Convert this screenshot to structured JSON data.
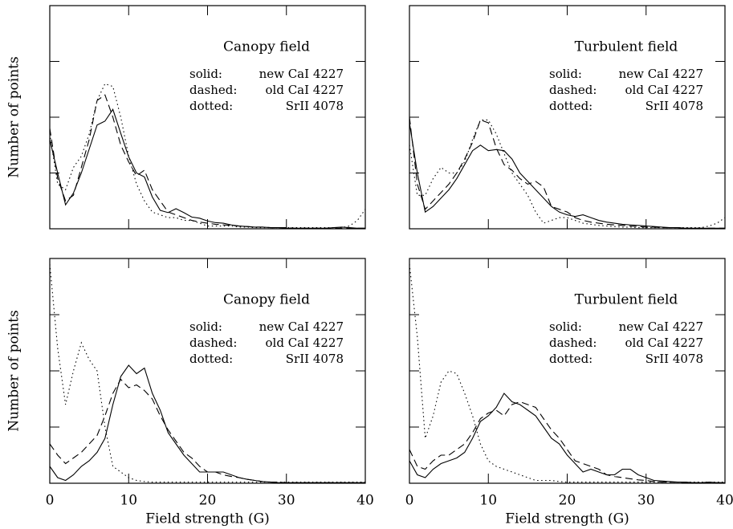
{
  "chart_data": [
    {
      "type": "line",
      "title": "Canopy field",
      "ylabel": "Number of points",
      "xlim": [
        0,
        40
      ],
      "xticks": [
        0,
        10,
        20,
        30,
        40
      ],
      "ylim": [
        0,
        4
      ],
      "yticks": [
        0,
        1,
        2,
        3,
        4
      ],
      "x": [
        0,
        1,
        2,
        3,
        4,
        5,
        6,
        7,
        8,
        9,
        10,
        11,
        12,
        13,
        14,
        15,
        16,
        17,
        18,
        19,
        20,
        21,
        22,
        23,
        24,
        25,
        26,
        27,
        28,
        29,
        30,
        31,
        32,
        33,
        34,
        35,
        36,
        37,
        38,
        39,
        40
      ],
      "series": [
        {
          "name": "new CaI 4227",
          "legend_prefix": "solid:",
          "dash": "solid",
          "color": "#000",
          "values": [
            1.6,
            1.0,
            0.43,
            0.64,
            1.0,
            1.43,
            1.86,
            1.93,
            2.14,
            1.71,
            1.29,
            1.0,
            0.93,
            0.57,
            0.33,
            0.29,
            0.36,
            0.29,
            0.21,
            0.19,
            0.14,
            0.11,
            0.1,
            0.07,
            0.05,
            0.04,
            0.03,
            0.03,
            0.02,
            0.02,
            0.01,
            0.01,
            0.01,
            0.01,
            0.01,
            0.01,
            0.02,
            0.03,
            0.02,
            0.01,
            0.01
          ]
        },
        {
          "name": "old CaI 4227",
          "legend_prefix": "dashed:",
          "dash": "dashed",
          "color": "#000",
          "values": [
            1.8,
            0.9,
            0.5,
            0.6,
            1.1,
            1.6,
            2.3,
            2.4,
            2.0,
            1.5,
            1.2,
            0.95,
            1.05,
            0.7,
            0.5,
            0.3,
            0.25,
            0.2,
            0.15,
            0.12,
            0.1,
            0.08,
            0.07,
            0.06,
            0.05,
            0.04,
            0.03,
            0.03,
            0.02,
            0.02,
            0.02,
            0.01,
            0.01,
            0.01,
            0.01,
            0.01,
            0.01,
            0.01,
            0.01,
            0.01,
            0.01
          ]
        },
        {
          "name": "SrII 4078",
          "legend_prefix": "dotted:",
          "dash": "dotted",
          "color": "#000",
          "values": [
            1.7,
            0.8,
            0.7,
            1.1,
            1.3,
            1.7,
            2.3,
            2.6,
            2.55,
            2.0,
            1.3,
            0.8,
            0.5,
            0.3,
            0.25,
            0.2,
            0.2,
            0.15,
            0.15,
            0.1,
            0.05,
            0.05,
            0.05,
            0.05,
            0.03,
            0.03,
            0.02,
            0.02,
            0.02,
            0.02,
            0.02,
            0.02,
            0.02,
            0.02,
            0.02,
            0.02,
            0.02,
            0.02,
            0.05,
            0.15,
            0.35
          ]
        }
      ]
    },
    {
      "type": "line",
      "title": "Turbulent field",
      "xlim": [
        0,
        40
      ],
      "xticks": [
        0,
        10,
        20,
        30,
        40
      ],
      "ylim": [
        0,
        4
      ],
      "yticks": [
        0,
        1,
        2,
        3,
        4
      ],
      "x": [
        0,
        1,
        2,
        3,
        4,
        5,
        6,
        7,
        8,
        9,
        10,
        11,
        12,
        13,
        14,
        15,
        16,
        17,
        18,
        19,
        20,
        21,
        22,
        23,
        24,
        25,
        26,
        27,
        28,
        29,
        30,
        31,
        32,
        33,
        34,
        35,
        36,
        37,
        38,
        39,
        40
      ],
      "series": [
        {
          "name": "new CaI 4227",
          "legend_prefix": "solid:",
          "dash": "solid",
          "color": "#000",
          "values": [
            1.9,
            1.0,
            0.3,
            0.4,
            0.55,
            0.7,
            0.9,
            1.15,
            1.4,
            1.5,
            1.4,
            1.42,
            1.4,
            1.25,
            1.0,
            0.85,
            0.7,
            0.55,
            0.4,
            0.3,
            0.25,
            0.22,
            0.25,
            0.2,
            0.15,
            0.12,
            0.1,
            0.08,
            0.07,
            0.06,
            0.05,
            0.04,
            0.03,
            0.02,
            0.02,
            0.01,
            0.01,
            0.01,
            0.01,
            0.01,
            0.01
          ]
        },
        {
          "name": "old CaI 4227",
          "legend_prefix": "dashed:",
          "dash": "dashed",
          "color": "#000",
          "values": [
            2.0,
            0.8,
            0.35,
            0.5,
            0.65,
            0.8,
            1.0,
            1.25,
            1.55,
            1.95,
            1.9,
            1.45,
            1.15,
            1.05,
            0.9,
            0.8,
            0.85,
            0.75,
            0.4,
            0.35,
            0.3,
            0.2,
            0.15,
            0.12,
            0.1,
            0.08,
            0.07,
            0.06,
            0.05,
            0.04,
            0.03,
            0.03,
            0.02,
            0.02,
            0.02,
            0.01,
            0.01,
            0.01,
            0.01,
            0.01,
            0.01
          ]
        },
        {
          "name": "SrII 4078",
          "legend_prefix": "dotted:",
          "dash": "dotted",
          "color": "#000",
          "values": [
            1.5,
            0.6,
            0.6,
            0.9,
            1.1,
            1.0,
            1.0,
            1.2,
            1.6,
            1.95,
            1.95,
            1.7,
            1.35,
            1.0,
            0.8,
            0.6,
            0.3,
            0.1,
            0.15,
            0.2,
            0.2,
            0.15,
            0.1,
            0.08,
            0.06,
            0.05,
            0.04,
            0.03,
            0.03,
            0.02,
            0.02,
            0.02,
            0.02,
            0.02,
            0.02,
            0.02,
            0.02,
            0.02,
            0.05,
            0.1,
            0.2
          ]
        }
      ]
    },
    {
      "type": "line",
      "title": "Canopy field",
      "ylabel": "Number of points",
      "xlabel": "Field strength (G)",
      "xlim": [
        0,
        40
      ],
      "xticks": [
        0,
        10,
        20,
        30,
        40
      ],
      "ylim": [
        0,
        4
      ],
      "yticks": [
        0,
        1,
        2,
        3,
        4
      ],
      "x": [
        0,
        1,
        2,
        3,
        4,
        5,
        6,
        7,
        8,
        9,
        10,
        11,
        12,
        13,
        14,
        15,
        16,
        17,
        18,
        19,
        20,
        21,
        22,
        23,
        24,
        25,
        26,
        27,
        28,
        29,
        30,
        31,
        32,
        33,
        34,
        35,
        36,
        37,
        38,
        39,
        40
      ],
      "series": [
        {
          "name": "new CaI 4227",
          "legend_prefix": "solid:",
          "dash": "solid",
          "color": "#000",
          "values": [
            0.3,
            0.1,
            0.05,
            0.15,
            0.3,
            0.4,
            0.55,
            0.8,
            1.4,
            1.9,
            2.1,
            1.95,
            2.05,
            1.6,
            1.3,
            0.9,
            0.7,
            0.5,
            0.35,
            0.2,
            0.2,
            0.2,
            0.2,
            0.15,
            0.1,
            0.07,
            0.05,
            0.03,
            0.02,
            0.01,
            0.01,
            0.01,
            0.01,
            0.01,
            0.01,
            0.01,
            0.01,
            0.01,
            0.01,
            0.01,
            0.01
          ]
        },
        {
          "name": "old CaI 4227",
          "legend_prefix": "dashed:",
          "dash": "dashed",
          "color": "#000",
          "values": [
            0.7,
            0.5,
            0.35,
            0.45,
            0.55,
            0.7,
            0.85,
            1.2,
            1.6,
            1.85,
            1.7,
            1.75,
            1.65,
            1.5,
            1.2,
            0.95,
            0.75,
            0.55,
            0.45,
            0.3,
            0.2,
            0.2,
            0.15,
            0.12,
            0.1,
            0.07,
            0.05,
            0.03,
            0.02,
            0.02,
            0.01,
            0.01,
            0.01,
            0.01,
            0.01,
            0.01,
            0.01,
            0.01,
            0.01,
            0.01,
            0.01
          ]
        },
        {
          "name": "SrII 4078",
          "legend_prefix": "dotted:",
          "dash": "dotted",
          "color": "#000",
          "values": [
            3.9,
            2.4,
            1.4,
            2.0,
            2.5,
            2.2,
            2.0,
            1.0,
            0.3,
            0.2,
            0.1,
            0.05,
            0.03,
            0.02,
            0.02,
            0.02,
            0.02,
            0.02,
            0.02,
            0.02,
            0.02,
            0.02,
            0.02,
            0.02,
            0.02,
            0.02,
            0.02,
            0.02,
            0.02,
            0.02,
            0.02,
            0.02,
            0.02,
            0.02,
            0.02,
            0.02,
            0.02,
            0.02,
            0.02,
            0.02,
            0.02
          ]
        }
      ]
    },
    {
      "type": "line",
      "title": "Turbulent field",
      "xlabel": "Field strength (G)",
      "xlim": [
        0,
        40
      ],
      "xticks": [
        0,
        10,
        20,
        30,
        40
      ],
      "ylim": [
        0,
        4
      ],
      "yticks": [
        0,
        1,
        2,
        3,
        4
      ],
      "x": [
        0,
        1,
        2,
        3,
        4,
        5,
        6,
        7,
        8,
        9,
        10,
        11,
        12,
        13,
        14,
        15,
        16,
        17,
        18,
        19,
        20,
        21,
        22,
        23,
        24,
        25,
        26,
        27,
        28,
        29,
        30,
        31,
        32,
        33,
        34,
        35,
        36,
        37,
        38,
        39,
        40
      ],
      "series": [
        {
          "name": "new CaI 4227",
          "legend_prefix": "solid:",
          "dash": "solid",
          "color": "#000",
          "values": [
            0.4,
            0.15,
            0.1,
            0.25,
            0.35,
            0.4,
            0.45,
            0.55,
            0.8,
            1.1,
            1.2,
            1.35,
            1.6,
            1.45,
            1.4,
            1.3,
            1.2,
            1.0,
            0.8,
            0.7,
            0.5,
            0.35,
            0.2,
            0.25,
            0.2,
            0.15,
            0.15,
            0.25,
            0.25,
            0.15,
            0.1,
            0.05,
            0.04,
            0.03,
            0.02,
            0.02,
            0.01,
            0.01,
            0.02,
            0.01,
            0.01
          ]
        },
        {
          "name": "old CaI 4227",
          "legend_prefix": "dashed:",
          "dash": "dashed",
          "color": "#000",
          "values": [
            0.6,
            0.3,
            0.25,
            0.4,
            0.5,
            0.5,
            0.6,
            0.7,
            0.9,
            1.15,
            1.25,
            1.3,
            1.2,
            1.4,
            1.45,
            1.4,
            1.35,
            1.15,
            0.95,
            0.8,
            0.6,
            0.4,
            0.35,
            0.3,
            0.25,
            0.15,
            0.12,
            0.1,
            0.08,
            0.06,
            0.05,
            0.03,
            0.02,
            0.02,
            0.02,
            0.01,
            0.01,
            0.01,
            0.01,
            0.01,
            0.01
          ]
        },
        {
          "name": "SrII 4078",
          "legend_prefix": "dotted:",
          "dash": "dotted",
          "color": "#000",
          "values": [
            3.9,
            2.6,
            0.8,
            1.2,
            1.8,
            2.0,
            1.95,
            1.6,
            1.2,
            0.7,
            0.4,
            0.3,
            0.25,
            0.2,
            0.15,
            0.1,
            0.05,
            0.05,
            0.05,
            0.03,
            0.02,
            0.02,
            0.02,
            0.02,
            0.02,
            0.02,
            0.02,
            0.02,
            0.02,
            0.02,
            0.02,
            0.02,
            0.02,
            0.02,
            0.02,
            0.02,
            0.02,
            0.02,
            0.02,
            0.02,
            0.02
          ]
        }
      ]
    }
  ]
}
